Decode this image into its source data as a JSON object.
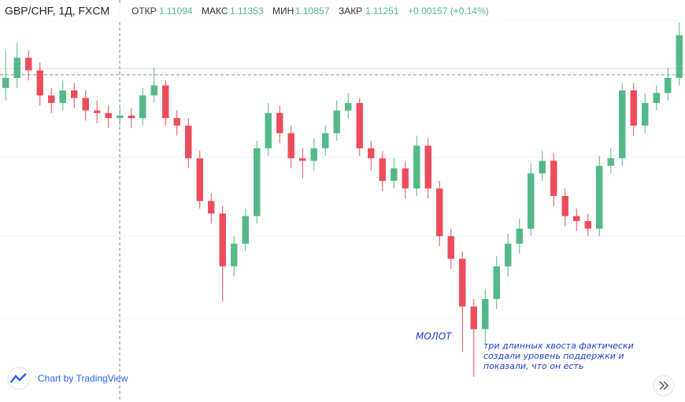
{
  "header": {
    "symbol": "GBP/CHF, 1Д, FXCM",
    "open_label": "ОТКР",
    "open": "1.11094",
    "high_label": "МАКС",
    "high": "1.11353",
    "low_label": "МИН",
    "low": "1.10857",
    "close_label": "ЗАКР",
    "close": "1.11251",
    "change": "+0.00157 (+0.14%)"
  },
  "chart_data": {
    "type": "candlestick",
    "up_color": "#53b987",
    "down_color": "#eb4d5c",
    "ylim": [
      1.0985,
      1.1145
    ],
    "candles": [
      [
        1.111,
        1.1125,
        1.1105,
        1.1114
      ],
      [
        1.1114,
        1.1128,
        1.111,
        1.1122
      ],
      [
        1.1122,
        1.1125,
        1.1113,
        1.1117
      ],
      [
        1.1117,
        1.112,
        1.1103,
        1.1107
      ],
      [
        1.1107,
        1.111,
        1.11,
        1.1104
      ],
      [
        1.1104,
        1.1113,
        1.1101,
        1.1109
      ],
      [
        1.1109,
        1.1112,
        1.1102,
        1.1106
      ],
      [
        1.1106,
        1.1109,
        1.1097,
        1.1101
      ],
      [
        1.1101,
        1.1105,
        1.1096,
        1.11
      ],
      [
        1.11,
        1.1103,
        1.1094,
        1.1098
      ],
      [
        1.1098,
        1.1103,
        1.1095,
        1.1099
      ],
      [
        1.1099,
        1.1102,
        1.1094,
        1.1098
      ],
      [
        1.1098,
        1.111,
        1.1095,
        1.1107
      ],
      [
        1.1107,
        1.1118,
        1.1104,
        1.1111
      ],
      [
        1.1111,
        1.1113,
        1.1095,
        1.1098
      ],
      [
        1.1098,
        1.1101,
        1.1091,
        1.1095
      ],
      [
        1.1095,
        1.1098,
        1.1078,
        1.1082
      ],
      [
        1.1082,
        1.1085,
        1.1062,
        1.1065
      ],
      [
        1.1065,
        1.1068,
        1.1056,
        1.106
      ],
      [
        1.106,
        1.1063,
        1.1025,
        1.1039
      ],
      [
        1.1039,
        1.1051,
        1.1035,
        1.1048
      ],
      [
        1.1048,
        1.1062,
        1.1045,
        1.1059
      ],
      [
        1.1059,
        1.1089,
        1.1056,
        1.1086
      ],
      [
        1.1086,
        1.1104,
        1.1083,
        1.11
      ],
      [
        1.11,
        1.1103,
        1.1088,
        1.1092
      ],
      [
        1.1092,
        1.1095,
        1.1078,
        1.1082
      ],
      [
        1.1082,
        1.1086,
        1.1074,
        1.1081
      ],
      [
        1.1081,
        1.109,
        1.1077,
        1.1086
      ],
      [
        1.1086,
        1.1095,
        1.1083,
        1.1092
      ],
      [
        1.1092,
        1.1105,
        1.1089,
        1.1101
      ],
      [
        1.1101,
        1.1108,
        1.1098,
        1.1104
      ],
      [
        1.1104,
        1.1106,
        1.1083,
        1.1086
      ],
      [
        1.1086,
        1.1089,
        1.1077,
        1.1082
      ],
      [
        1.1082,
        1.1085,
        1.1069,
        1.1073
      ],
      [
        1.1073,
        1.1082,
        1.107,
        1.1078
      ],
      [
        1.1078,
        1.1081,
        1.1066,
        1.107
      ],
      [
        1.107,
        1.1091,
        1.1067,
        1.1087
      ],
      [
        1.1087,
        1.109,
        1.1066,
        1.107
      ],
      [
        1.107,
        1.1073,
        1.1047,
        1.1051
      ],
      [
        1.1051,
        1.1054,
        1.1038,
        1.1042
      ],
      [
        1.1042,
        1.1045,
        1.1005,
        1.1023
      ],
      [
        1.1023,
        1.1026,
        1.0995,
        1.1014
      ],
      [
        1.1014,
        1.103,
        1.1008,
        1.1026
      ],
      [
        1.1026,
        1.1043,
        1.1022,
        1.1039
      ],
      [
        1.1039,
        1.1052,
        1.1035,
        1.1048
      ],
      [
        1.1048,
        1.1058,
        1.1044,
        1.1054
      ],
      [
        1.1054,
        1.108,
        1.1051,
        1.1076
      ],
      [
        1.1076,
        1.1085,
        1.1073,
        1.1081
      ],
      [
        1.1081,
        1.1084,
        1.1063,
        1.1067
      ],
      [
        1.1067,
        1.107,
        1.1055,
        1.1059
      ],
      [
        1.1059,
        1.1062,
        1.1053,
        1.1057
      ],
      [
        1.1057,
        1.106,
        1.1051,
        1.1054
      ],
      [
        1.1054,
        1.1083,
        1.1051,
        1.1079
      ],
      [
        1.1079,
        1.1086,
        1.1076,
        1.1082
      ],
      [
        1.1082,
        1.1112,
        1.1079,
        1.1109
      ],
      [
        1.1109,
        1.1112,
        1.1091,
        1.1095
      ],
      [
        1.1095,
        1.1108,
        1.1092,
        1.1104
      ],
      [
        1.1104,
        1.1111,
        1.1101,
        1.1108
      ],
      [
        1.1108,
        1.1118,
        1.1105,
        1.1114
      ],
      [
        1.1114,
        1.1136,
        1.1111,
        1.1131
      ]
    ],
    "annotations": [
      "МОЛОТ",
      "три длинных хвоста фактически",
      "создали уровень поддержки и",
      "показали, что он есть"
    ]
  },
  "footer": {
    "credit": "Chart by TradingView"
  }
}
